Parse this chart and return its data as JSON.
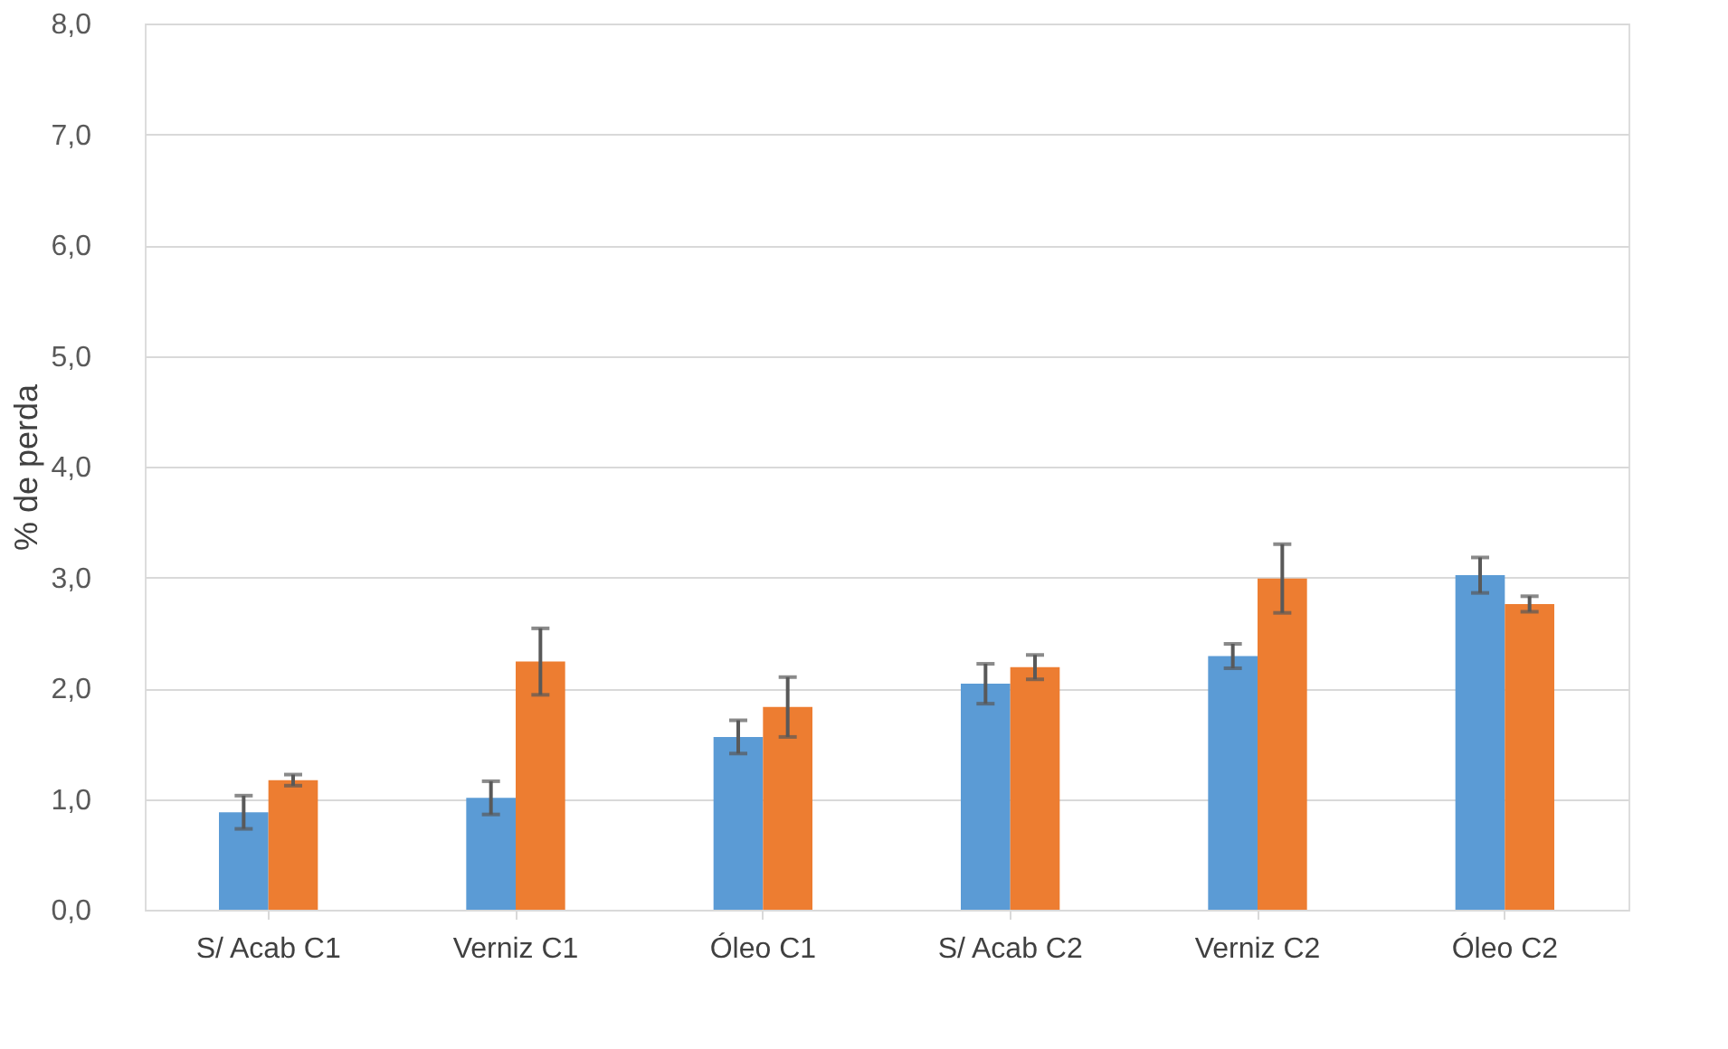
{
  "chart_data": {
    "type": "bar",
    "ylabel": "% de perda",
    "categories": [
      "S/ Acab C1",
      "Verniz C1",
      "Óleo C1",
      "S/ Acab C2",
      "Verniz C2",
      "Óleo C2"
    ],
    "series": [
      {
        "color": "#5b9bd5",
        "values": [
          0.88,
          1.01,
          1.56,
          2.04,
          2.29,
          3.02
        ],
        "errors": [
          0.15,
          0.15,
          0.15,
          0.18,
          0.11,
          0.16
        ]
      },
      {
        "color": "#ed7d31",
        "values": [
          1.17,
          2.24,
          1.83,
          2.19,
          2.99,
          2.76
        ],
        "errors": [
          0.05,
          0.3,
          0.27,
          0.11,
          0.31,
          0.07
        ]
      }
    ],
    "ylim": [
      0,
      8
    ],
    "yticks": [
      {
        "value": 0,
        "label": "0,0"
      },
      {
        "value": 1,
        "label": "1,0"
      },
      {
        "value": 2,
        "label": "2,0"
      },
      {
        "value": 3,
        "label": "3,0"
      },
      {
        "value": 4,
        "label": "4,0"
      },
      {
        "value": 5,
        "label": "5,0"
      },
      {
        "value": 6,
        "label": "6,0"
      },
      {
        "value": 7,
        "label": "7,0"
      },
      {
        "value": 8,
        "label": "8,0"
      }
    ],
    "grid": "y",
    "legend": false
  }
}
